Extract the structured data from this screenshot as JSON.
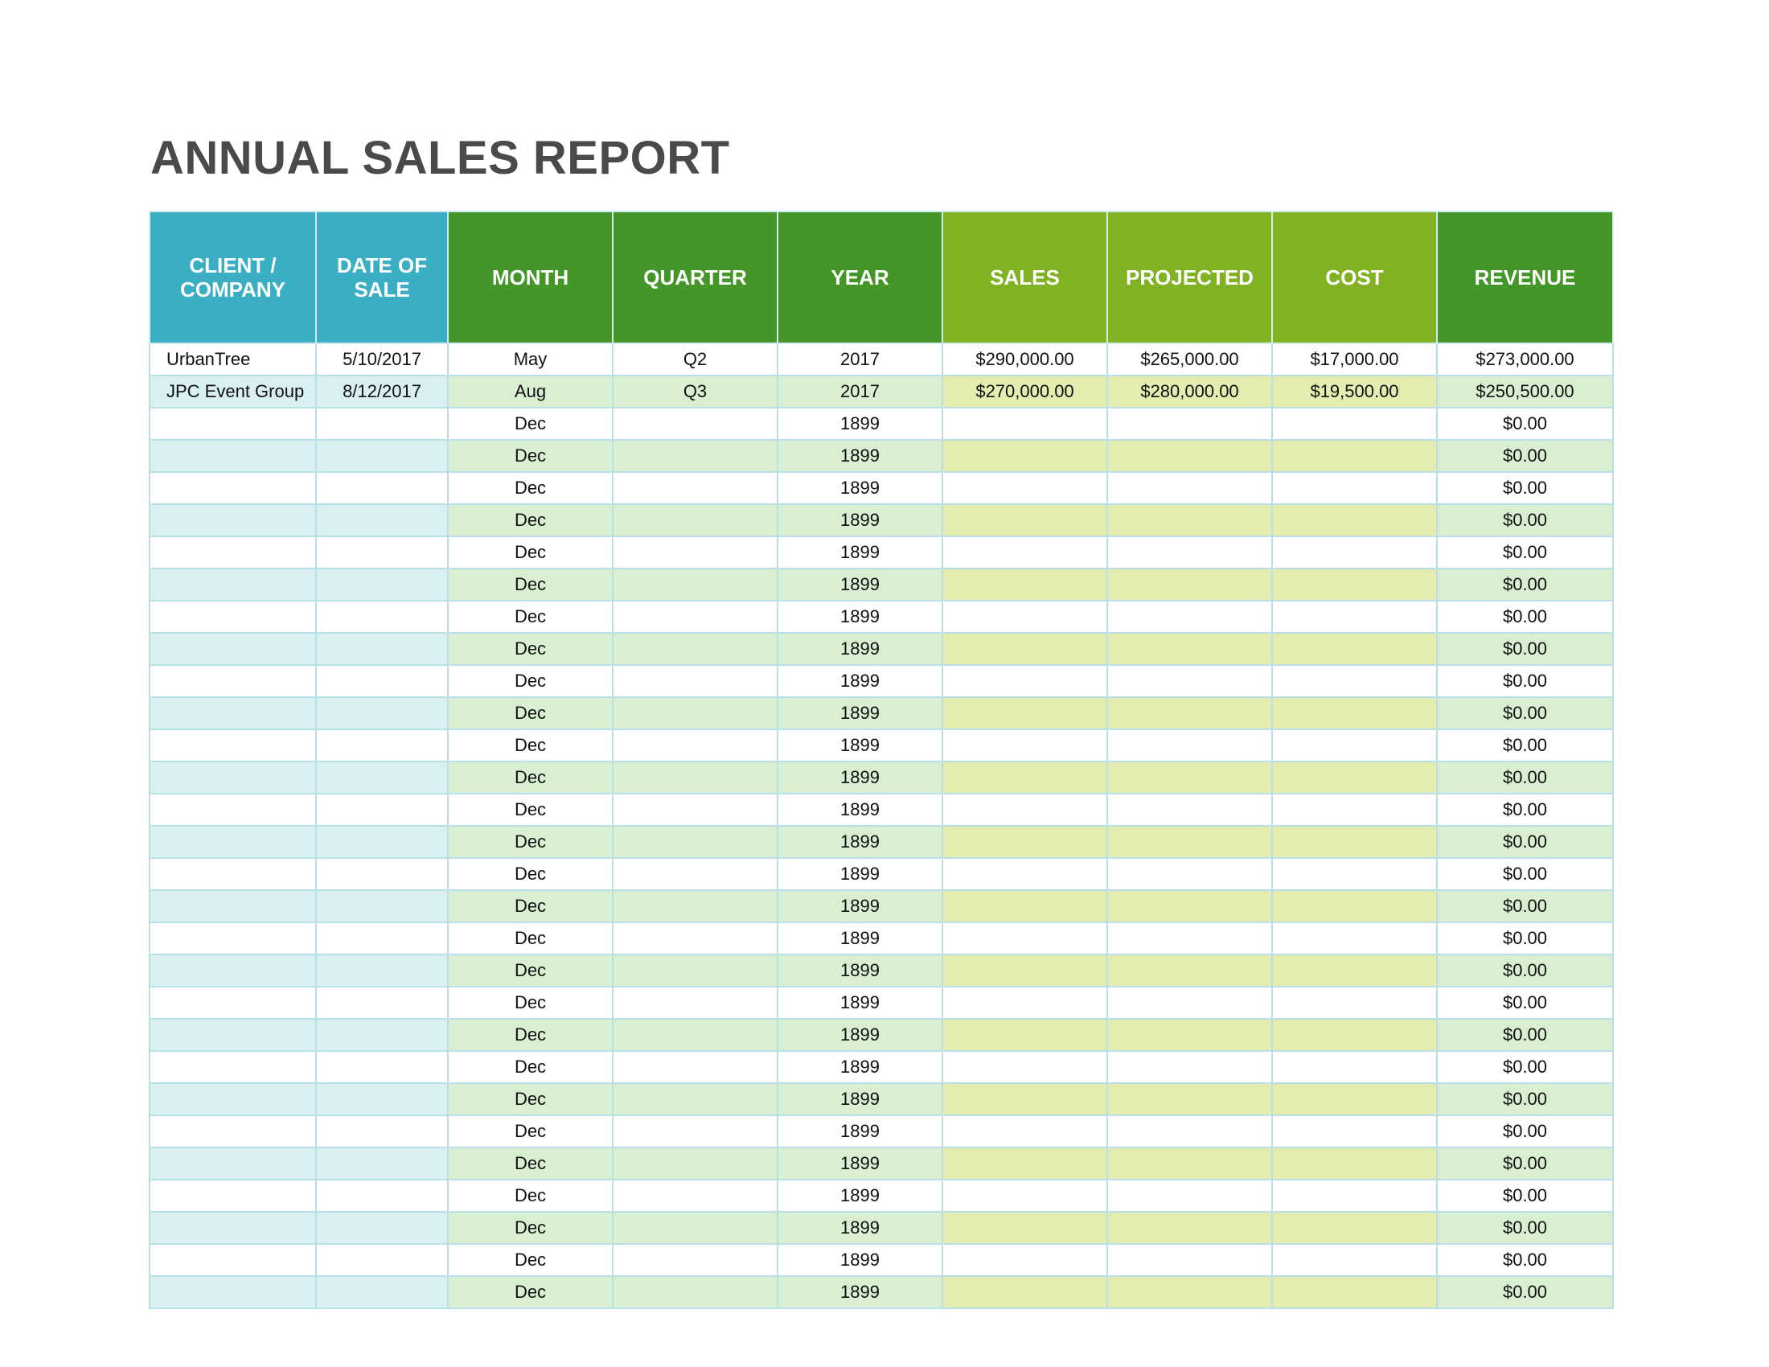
{
  "title": "ANNUAL SALES REPORT",
  "columns": [
    {
      "lines": [
        "CLIENT /",
        "COMPANY"
      ],
      "group": "teal"
    },
    {
      "lines": [
        "DATE OF",
        "SALE"
      ],
      "group": "teal"
    },
    {
      "lines": [
        "MONTH"
      ],
      "group": "green"
    },
    {
      "lines": [
        "QUARTER"
      ],
      "group": "green"
    },
    {
      "lines": [
        "YEAR"
      ],
      "group": "green"
    },
    {
      "lines": [
        "SALES"
      ],
      "group": "lime"
    },
    {
      "lines": [
        "PROJECTED"
      ],
      "group": "lime"
    },
    {
      "lines": [
        "COST"
      ],
      "group": "lime"
    },
    {
      "lines": [
        "REVENUE"
      ],
      "group": "green"
    }
  ],
  "rows": [
    [
      "UrbanTree",
      "5/10/2017",
      "May",
      "Q2",
      "2017",
      "$290,000.00",
      "$265,000.00",
      "$17,000.00",
      "$273,000.00"
    ],
    [
      "JPC Event Group",
      "8/12/2017",
      "Aug",
      "Q3",
      "2017",
      "$270,000.00",
      "$280,000.00",
      "$19,500.00",
      "$250,500.00"
    ],
    [
      "",
      "",
      "Dec",
      "",
      "1899",
      "",
      "",
      "",
      "$0.00"
    ],
    [
      "",
      "",
      "Dec",
      "",
      "1899",
      "",
      "",
      "",
      "$0.00"
    ],
    [
      "",
      "",
      "Dec",
      "",
      "1899",
      "",
      "",
      "",
      "$0.00"
    ],
    [
      "",
      "",
      "Dec",
      "",
      "1899",
      "",
      "",
      "",
      "$0.00"
    ],
    [
      "",
      "",
      "Dec",
      "",
      "1899",
      "",
      "",
      "",
      "$0.00"
    ],
    [
      "",
      "",
      "Dec",
      "",
      "1899",
      "",
      "",
      "",
      "$0.00"
    ],
    [
      "",
      "",
      "Dec",
      "",
      "1899",
      "",
      "",
      "",
      "$0.00"
    ],
    [
      "",
      "",
      "Dec",
      "",
      "1899",
      "",
      "",
      "",
      "$0.00"
    ],
    [
      "",
      "",
      "Dec",
      "",
      "1899",
      "",
      "",
      "",
      "$0.00"
    ],
    [
      "",
      "",
      "Dec",
      "",
      "1899",
      "",
      "",
      "",
      "$0.00"
    ],
    [
      "",
      "",
      "Dec",
      "",
      "1899",
      "",
      "",
      "",
      "$0.00"
    ],
    [
      "",
      "",
      "Dec",
      "",
      "1899",
      "",
      "",
      "",
      "$0.00"
    ],
    [
      "",
      "",
      "Dec",
      "",
      "1899",
      "",
      "",
      "",
      "$0.00"
    ],
    [
      "",
      "",
      "Dec",
      "",
      "1899",
      "",
      "",
      "",
      "$0.00"
    ],
    [
      "",
      "",
      "Dec",
      "",
      "1899",
      "",
      "",
      "",
      "$0.00"
    ],
    [
      "",
      "",
      "Dec",
      "",
      "1899",
      "",
      "",
      "",
      "$0.00"
    ],
    [
      "",
      "",
      "Dec",
      "",
      "1899",
      "",
      "",
      "",
      "$0.00"
    ],
    [
      "",
      "",
      "Dec",
      "",
      "1899",
      "",
      "",
      "",
      "$0.00"
    ],
    [
      "",
      "",
      "Dec",
      "",
      "1899",
      "",
      "",
      "",
      "$0.00"
    ],
    [
      "",
      "",
      "Dec",
      "",
      "1899",
      "",
      "",
      "",
      "$0.00"
    ],
    [
      "",
      "",
      "Dec",
      "",
      "1899",
      "",
      "",
      "",
      "$0.00"
    ],
    [
      "",
      "",
      "Dec",
      "",
      "1899",
      "",
      "",
      "",
      "$0.00"
    ],
    [
      "",
      "",
      "Dec",
      "",
      "1899",
      "",
      "",
      "",
      "$0.00"
    ],
    [
      "",
      "",
      "Dec",
      "",
      "1899",
      "",
      "",
      "",
      "$0.00"
    ],
    [
      "",
      "",
      "Dec",
      "",
      "1899",
      "",
      "",
      "",
      "$0.00"
    ],
    [
      "",
      "",
      "Dec",
      "",
      "1899",
      "",
      "",
      "",
      "$0.00"
    ],
    [
      "",
      "",
      "Dec",
      "",
      "1899",
      "",
      "",
      "",
      "$0.00"
    ],
    [
      "",
      "",
      "Dec",
      "",
      "1899",
      "",
      "",
      "",
      "$0.00"
    ]
  ]
}
